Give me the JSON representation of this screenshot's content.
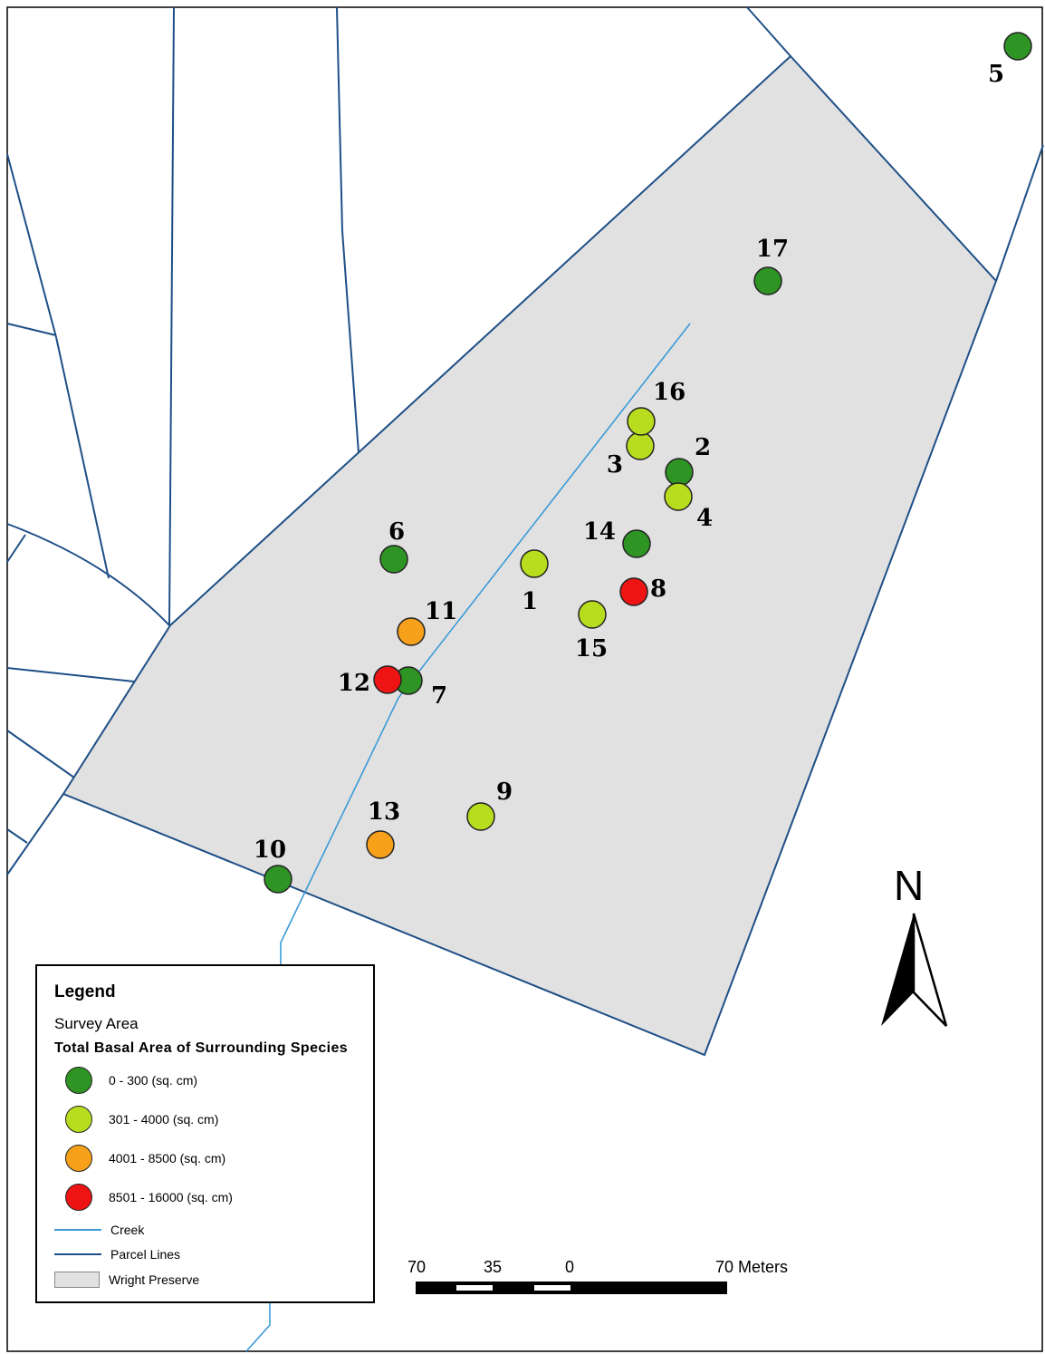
{
  "colors": {
    "green": "#2e9424",
    "light_green": "#b7dd1e",
    "orange": "#f7a11b",
    "red": "#ee1414",
    "preserve_fill": "#e1e1e1",
    "creek": "#3a9ad8",
    "parcel": "#1f4f86"
  },
  "sites": [
    {
      "id": "1",
      "class": "light_green"
    },
    {
      "id": "2",
      "class": "green"
    },
    {
      "id": "3",
      "class": "light_green"
    },
    {
      "id": "4",
      "class": "light_green"
    },
    {
      "id": "5",
      "class": "green"
    },
    {
      "id": "6",
      "class": "green"
    },
    {
      "id": "7",
      "class": "green"
    },
    {
      "id": "8",
      "class": "red"
    },
    {
      "id": "9",
      "class": "light_green"
    },
    {
      "id": "10",
      "class": "green"
    },
    {
      "id": "11",
      "class": "orange"
    },
    {
      "id": "12",
      "class": "red"
    },
    {
      "id": "13",
      "class": "orange"
    },
    {
      "id": "14",
      "class": "green"
    },
    {
      "id": "15",
      "class": "light_green"
    },
    {
      "id": "16",
      "class": "light_green"
    },
    {
      "id": "17",
      "class": "green"
    }
  ],
  "legend": {
    "title": "Legend",
    "survey_area": "Survey Area",
    "basal_title": "Total Basal Area of Surrounding Species",
    "classes": [
      {
        "key": "green",
        "label": "0 - 300 (sq. cm)"
      },
      {
        "key": "light_green",
        "label": "301 - 4000 (sq. cm)"
      },
      {
        "key": "orange",
        "label": "4001 - 8500 (sq. cm)"
      },
      {
        "key": "red",
        "label": "8501 - 16000 (sq. cm)"
      }
    ],
    "creek": "Creek",
    "parcel_lines": "Parcel Lines",
    "preserve": "Wright Preserve"
  },
  "scale_bar": {
    "labels": [
      "70",
      "35",
      "0",
      "70 Meters"
    ]
  },
  "north_arrow": {
    "letter": "N"
  }
}
